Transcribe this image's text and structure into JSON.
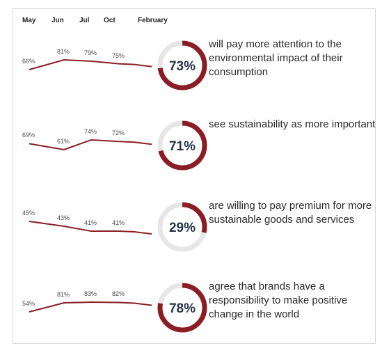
{
  "months": [
    "May",
    "Jun",
    "Jul",
    "Oct",
    "February"
  ],
  "colors": {
    "accent": "#8b1e24",
    "track": "#e6e6e6",
    "center_text": "#26354a",
    "line": "#8b1e24"
  },
  "chart_data": {
    "type": "line",
    "x": [
      "May",
      "Jun",
      "Jul",
      "Oct"
    ],
    "rows": [
      {
        "series": [
          66,
          81,
          79,
          75
        ],
        "value_labels": [
          "66%",
          "81%",
          "79%",
          "75%"
        ],
        "current": 73,
        "current_label": "73%",
        "text": "will pay more attention to the environmental impact of their consumption"
      },
      {
        "series": [
          69,
          61,
          74,
          72
        ],
        "value_labels": [
          "69%",
          "61%",
          "74%",
          "72%"
        ],
        "current": 71,
        "current_label": "71%",
        "text": "see sustainability as more important"
      },
      {
        "series": [
          45,
          43,
          41,
          41
        ],
        "value_labels": [
          "45%",
          "43%",
          "41%",
          "41%"
        ],
        "current": 29,
        "current_label": "29%",
        "text": "are willing to pay premium for more sustainable goods and services"
      },
      {
        "series": [
          54,
          81,
          83,
          82
        ],
        "value_labels": [
          "54%",
          "81%",
          "83%",
          "82%"
        ],
        "current": 78,
        "current_label": "78%",
        "text": "agree that brands have a responsibility to make positive change in the world"
      }
    ]
  }
}
